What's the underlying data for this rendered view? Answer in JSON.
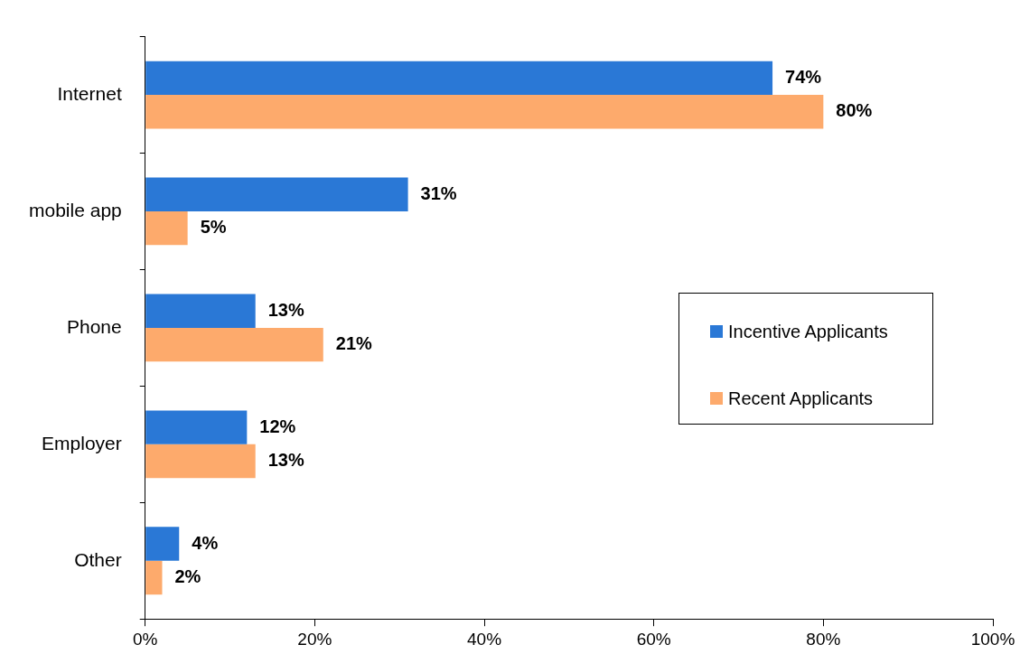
{
  "chart_data": {
    "type": "bar",
    "orientation": "horizontal",
    "categories": [
      "Internet",
      "mobile app",
      "Phone",
      "Employer",
      "Other"
    ],
    "series": [
      {
        "name": "Incentive Applicants",
        "color": "#2a78d6",
        "values": [
          74,
          31,
          13,
          12,
          4
        ],
        "value_labels": [
          "74%",
          "31%",
          "13%",
          "12%",
          "4%"
        ]
      },
      {
        "name": "Recent Applicants",
        "color": "#fdaa6c",
        "values": [
          80,
          5,
          21,
          13,
          2
        ],
        "value_labels": [
          "80%",
          "5%",
          "21%",
          "13%",
          "2%"
        ]
      }
    ],
    "xlim": [
      0,
      100
    ],
    "xticks": [
      {
        "value": 0,
        "label": "0%"
      },
      {
        "value": 20,
        "label": "20%"
      },
      {
        "value": 40,
        "label": "40%"
      },
      {
        "value": 60,
        "label": "60%"
      },
      {
        "value": 80,
        "label": "80%"
      },
      {
        "value": 100,
        "label": "100%"
      }
    ],
    "grid": false,
    "legend": "right"
  }
}
